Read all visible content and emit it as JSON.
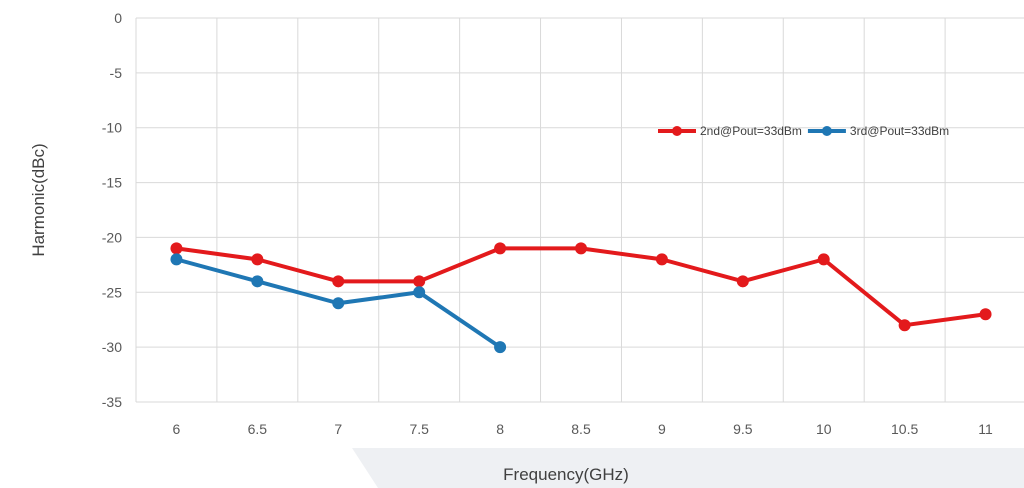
{
  "chart_data": {
    "type": "line",
    "title": "",
    "xlabel": "Frequency(GHz)",
    "ylabel": "Harmonic(dBc)",
    "categories": [
      "6",
      "6.5",
      "7",
      "7.5",
      "8",
      "8.5",
      "9",
      "9.5",
      "10",
      "10.5",
      "11"
    ],
    "ylim": [
      -35,
      0
    ],
    "yticks": [
      "0",
      "-5",
      "-10",
      "-15",
      "-20",
      "-25",
      "-30",
      "-35"
    ],
    "grid": true,
    "legend_position": "upper-right",
    "series": [
      {
        "name": "2nd@Pout=33dBm",
        "color": "#e31a1c",
        "values": [
          -21,
          -22,
          -24,
          -24,
          -21,
          -21,
          -22,
          -24,
          -22,
          -28,
          -27
        ]
      },
      {
        "name": "3rd@Pout=33dBm",
        "color": "#1f77b4",
        "values": [
          -22,
          -24,
          -26,
          -25,
          -30,
          null,
          null,
          null,
          null,
          null,
          null
        ]
      }
    ]
  }
}
